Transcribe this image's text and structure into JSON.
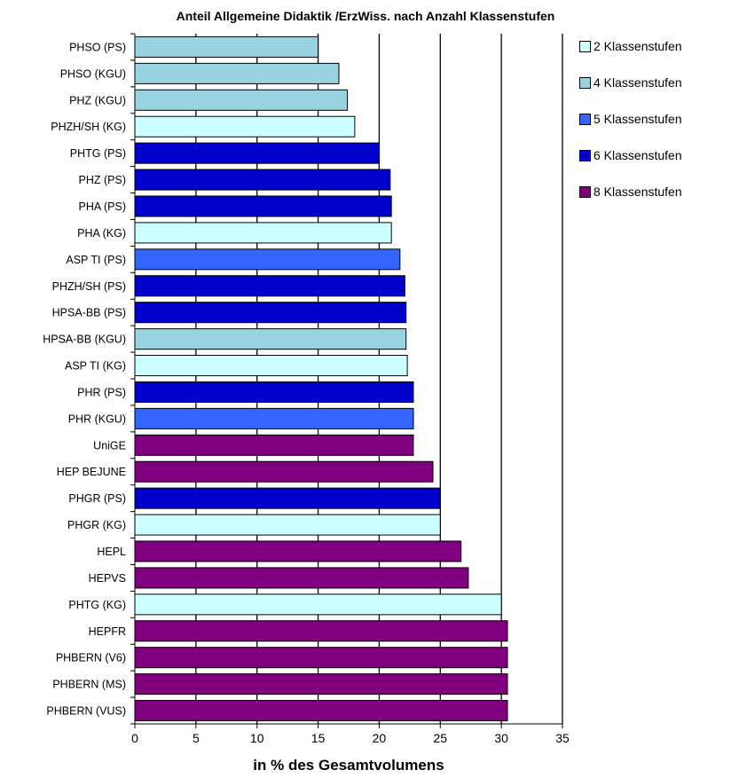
{
  "chart_data": {
    "type": "bar",
    "orientation": "horizontal",
    "title": "Anteil Allgemeine Didaktik /ErzWiss. nach Anzahl Klassenstufen",
    "xlabel": "in % des Gesamtvolumens",
    "ylabel": "",
    "xlim": [
      0,
      35
    ],
    "xticks": [
      0,
      5,
      10,
      15,
      20,
      25,
      30,
      35
    ],
    "grid": "vertical at major ticks",
    "legend_position": "right",
    "colors": {
      "2 Klassenstufen": "#ccffff",
      "4 Klassenstufen": "#99d3e0",
      "5 Klassenstufen": "#3366ff",
      "6 Klassenstufen": "#0000cc",
      "8 Klassenstufen": "#800080"
    },
    "legend": [
      "2 Klassenstufen",
      "4 Klassenstufen",
      "5 Klassenstufen",
      "6 Klassenstufen",
      "8 Klassenstufen"
    ],
    "bars": [
      {
        "label": "PHSO (PS)",
        "value": 15.0,
        "group": "4 Klassenstufen"
      },
      {
        "label": "PHSO (KGU)",
        "value": 16.7,
        "group": "4 Klassenstufen"
      },
      {
        "label": "PHZ (KGU)",
        "value": 17.4,
        "group": "4 Klassenstufen"
      },
      {
        "label": "PHZH/SH (KG)",
        "value": 18.0,
        "group": "2 Klassenstufen"
      },
      {
        "label": "PHTG (PS)",
        "value": 20.0,
        "group": "6 Klassenstufen"
      },
      {
        "label": "PHZ (PS)",
        "value": 20.9,
        "group": "6 Klassenstufen"
      },
      {
        "label": "PHA (PS)",
        "value": 21.0,
        "group": "6 Klassenstufen"
      },
      {
        "label": "PHA (KG)",
        "value": 21.0,
        "group": "2 Klassenstufen"
      },
      {
        "label": "ASP TI (PS)",
        "value": 21.7,
        "group": "5 Klassenstufen"
      },
      {
        "label": "PHZH/SH (PS)",
        "value": 22.1,
        "group": "6 Klassenstufen"
      },
      {
        "label": "HPSA-BB (PS)",
        "value": 22.2,
        "group": "6 Klassenstufen"
      },
      {
        "label": "HPSA-BB (KGU)",
        "value": 22.2,
        "group": "4 Klassenstufen"
      },
      {
        "label": "ASP TI (KG)",
        "value": 22.3,
        "group": "2 Klassenstufen"
      },
      {
        "label": "PHR (PS)",
        "value": 22.8,
        "group": "6 Klassenstufen"
      },
      {
        "label": "PHR (KGU)",
        "value": 22.8,
        "group": "5 Klassenstufen"
      },
      {
        "label": "UniGE",
        "value": 22.8,
        "group": "8 Klassenstufen"
      },
      {
        "label": "HEP BEJUNE",
        "value": 24.4,
        "group": "8 Klassenstufen"
      },
      {
        "label": "PHGR (PS)",
        "value": 25.0,
        "group": "6 Klassenstufen"
      },
      {
        "label": "PHGR (KG)",
        "value": 25.0,
        "group": "2 Klassenstufen"
      },
      {
        "label": "HEPL",
        "value": 26.7,
        "group": "8 Klassenstufen"
      },
      {
        "label": "HEPVS",
        "value": 27.3,
        "group": "8 Klassenstufen"
      },
      {
        "label": "PHTG (KG)",
        "value": 30.0,
        "group": "2 Klassenstufen"
      },
      {
        "label": "HEPFR",
        "value": 30.5,
        "group": "8 Klassenstufen"
      },
      {
        "label": "PHBERN (V6)",
        "value": 30.5,
        "group": "8 Klassenstufen"
      },
      {
        "label": "PHBERN (MS)",
        "value": 30.5,
        "group": "8 Klassenstufen"
      },
      {
        "label": "PHBERN (VUS)",
        "value": 30.5,
        "group": "8 Klassenstufen"
      }
    ]
  }
}
